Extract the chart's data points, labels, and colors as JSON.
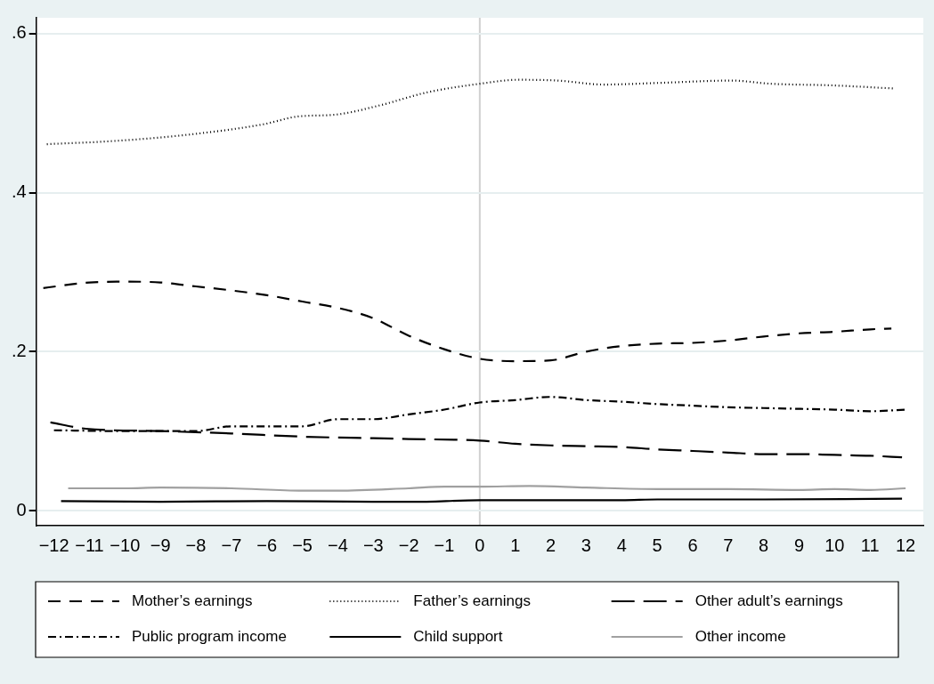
{
  "chart_data": {
    "type": "line",
    "xlim": [
      -12.5,
      12.5
    ],
    "xticks": [
      {
        "value": -12,
        "label": "−12"
      },
      {
        "value": -11,
        "label": "−11"
      },
      {
        "value": -10,
        "label": "−10"
      },
      {
        "value": -9,
        "label": "−9"
      },
      {
        "value": -8,
        "label": "−8"
      },
      {
        "value": -7,
        "label": "−7"
      },
      {
        "value": -6,
        "label": "−6"
      },
      {
        "value": -5,
        "label": "−5"
      },
      {
        "value": -4,
        "label": "−4"
      },
      {
        "value": -3,
        "label": "−3"
      },
      {
        "value": -2,
        "label": "−2"
      },
      {
        "value": -1,
        "label": "−1"
      },
      0,
      1,
      2,
      3,
      4,
      5,
      6,
      7,
      8,
      9,
      10,
      11,
      12
    ],
    "ylim": [
      -0.019,
      0.62
    ],
    "yticks": [
      {
        "value": 0,
        "label": "0"
      },
      {
        "value": 0.2,
        "label": ".2"
      },
      {
        "value": 0.4,
        "label": ".4"
      },
      {
        "value": 0.6,
        "label": ".6"
      }
    ],
    "grid": "y",
    "legend": "bottom",
    "marker": "none",
    "ref_lines": [
      {
        "axis": "x",
        "value": 0,
        "color": "#d0d0d0"
      }
    ],
    "series": [
      {
        "name": "Mother’s earnings",
        "color": "#000000",
        "line_style": "dashed",
        "x": [
          -12.3,
          -11,
          -10,
          -9,
          -8,
          -7,
          -6,
          -5,
          -4,
          -3,
          -2,
          -1,
          0,
          1,
          2,
          3,
          4,
          5,
          6,
          7,
          8,
          9,
          10,
          11,
          11.6
        ],
        "values": [
          0.28,
          0.287,
          0.288,
          0.287,
          0.282,
          0.277,
          0.271,
          0.263,
          0.255,
          0.242,
          0.22,
          0.203,
          0.191,
          0.188,
          0.189,
          0.2,
          0.207,
          0.21,
          0.211,
          0.214,
          0.219,
          0.223,
          0.225,
          0.228,
          0.229
        ]
      },
      {
        "name": "Father’s earnings",
        "color": "#000000",
        "line_style": "dotted",
        "x": [
          -12.2,
          -10.3,
          -8.2,
          -6.1,
          -5.1,
          -4.1,
          -2.8,
          -1.5,
          0,
          1.1,
          2.2,
          3.5,
          5,
          7.1,
          8.2,
          9.9,
          11.7
        ],
        "values": [
          0.461,
          0.465,
          0.473,
          0.486,
          0.496,
          0.498,
          0.51,
          0.526,
          0.537,
          0.542,
          0.541,
          0.536,
          0.538,
          0.541,
          0.537,
          0.535,
          0.531
        ]
      },
      {
        "name": "Other adult’s earnings",
        "color": "#000000",
        "line_style": "longdash",
        "x": [
          -12.1,
          -11.1,
          -9,
          -7,
          -5,
          -3,
          -2,
          0,
          1,
          2,
          3,
          4,
          5,
          6,
          7,
          8,
          9,
          10,
          11,
          11.9
        ],
        "values": [
          0.111,
          0.103,
          0.1,
          0.097,
          0.093,
          0.091,
          0.09,
          0.088,
          0.084,
          0.082,
          0.081,
          0.08,
          0.077,
          0.075,
          0.073,
          0.071,
          0.071,
          0.07,
          0.069,
          0.067
        ]
      },
      {
        "name": "Public program income",
        "color": "#000000",
        "line_style": "dashdot",
        "x": [
          -12,
          -10,
          -8,
          -7,
          -5,
          -4,
          -3,
          -2,
          -1,
          0,
          1,
          2,
          3,
          4,
          5,
          6,
          7,
          8,
          9,
          10,
          11,
          12
        ],
        "values": [
          0.101,
          0.1,
          0.1,
          0.106,
          0.106,
          0.115,
          0.115,
          0.121,
          0.127,
          0.136,
          0.139,
          0.143,
          0.139,
          0.137,
          0.134,
          0.132,
          0.13,
          0.129,
          0.128,
          0.127,
          0.125,
          0.127
        ]
      },
      {
        "name": "Child support",
        "color": "#000000",
        "line_style": "solid",
        "x": [
          -11.8,
          -9,
          -6,
          -3,
          -1.9,
          0,
          2,
          4,
          5,
          8,
          11.9
        ],
        "values": [
          0.012,
          0.011,
          0.012,
          0.011,
          0.011,
          0.013,
          0.013,
          0.013,
          0.014,
          0.014,
          0.015
        ]
      },
      {
        "name": "Other income",
        "color": "#a0a0a0",
        "line_style": "solid",
        "x": [
          -11.6,
          -10,
          -9,
          -7,
          -5,
          -4,
          -2,
          -1,
          0,
          1.4,
          3,
          5,
          7,
          9,
          10,
          11,
          12
        ],
        "values": [
          0.028,
          0.028,
          0.029,
          0.028,
          0.025,
          0.025,
          0.028,
          0.03,
          0.03,
          0.031,
          0.029,
          0.027,
          0.027,
          0.026,
          0.027,
          0.026,
          0.028
        ]
      }
    ]
  }
}
